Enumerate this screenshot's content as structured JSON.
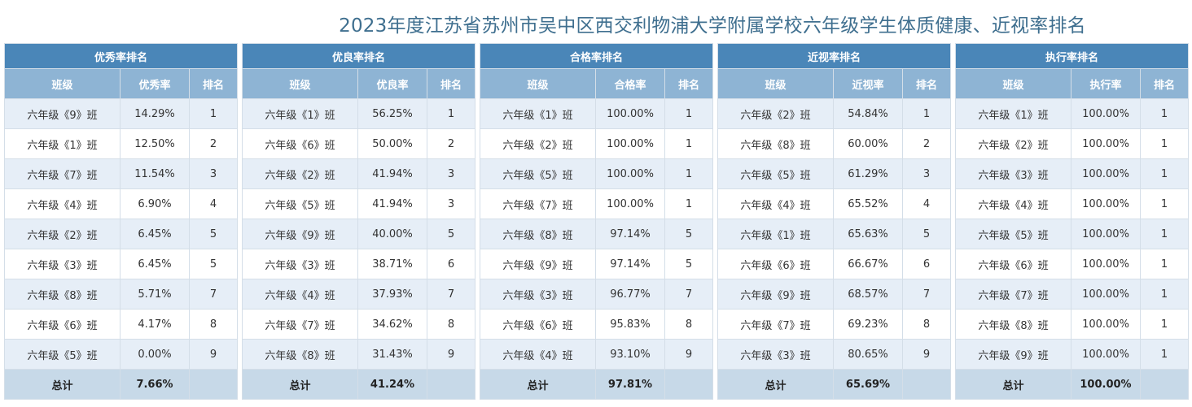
{
  "title": "2023年度江苏省苏州市吴中区西交利物浦大学附属学校六年级学生体质健康、近视率排名",
  "tables": [
    {
      "name": "优秀率排名",
      "columns": [
        "班级",
        "优秀率",
        "排名"
      ],
      "rows": [
        [
          "六年级《9》班",
          "14.29%",
          "1"
        ],
        [
          "六年级《1》班",
          "12.50%",
          "2"
        ],
        [
          "六年级《7》班",
          "11.54%",
          "3"
        ],
        [
          "六年级《4》班",
          "6.90%",
          "4"
        ],
        [
          "六年级《2》班",
          "6.45%",
          "5"
        ],
        [
          "六年级《3》班",
          "6.45%",
          "5"
        ],
        [
          "六年级《8》班",
          "5.71%",
          "7"
        ],
        [
          "六年级《6》班",
          "4.17%",
          "8"
        ],
        [
          "六年级《5》班",
          "0.00%",
          "9"
        ]
      ],
      "total_label": "总计",
      "total_value": "7.66%"
    },
    {
      "name": "优良率排名",
      "columns": [
        "班级",
        "优良率",
        "排名"
      ],
      "rows": [
        [
          "六年级《1》班",
          "56.25%",
          "1"
        ],
        [
          "六年级《6》班",
          "50.00%",
          "2"
        ],
        [
          "六年级《2》班",
          "41.94%",
          "3"
        ],
        [
          "六年级《5》班",
          "41.94%",
          "3"
        ],
        [
          "六年级《9》班",
          "40.00%",
          "5"
        ],
        [
          "六年级《3》班",
          "38.71%",
          "6"
        ],
        [
          "六年级《4》班",
          "37.93%",
          "7"
        ],
        [
          "六年级《7》班",
          "34.62%",
          "8"
        ],
        [
          "六年级《8》班",
          "31.43%",
          "9"
        ]
      ],
      "total_label": "总计",
      "total_value": "41.24%"
    },
    {
      "name": "合格率排名",
      "columns": [
        "班级",
        "合格率",
        "排名"
      ],
      "rows": [
        [
          "六年级《1》班",
          "100.00%",
          "1"
        ],
        [
          "六年级《2》班",
          "100.00%",
          "1"
        ],
        [
          "六年级《5》班",
          "100.00%",
          "1"
        ],
        [
          "六年级《7》班",
          "100.00%",
          "1"
        ],
        [
          "六年级《8》班",
          "97.14%",
          "5"
        ],
        [
          "六年级《9》班",
          "97.14%",
          "5"
        ],
        [
          "六年级《3》班",
          "96.77%",
          "7"
        ],
        [
          "六年级《6》班",
          "95.83%",
          "8"
        ],
        [
          "六年级《4》班",
          "93.10%",
          "9"
        ]
      ],
      "total_label": "总计",
      "total_value": "97.81%"
    },
    {
      "name": "近视率排名",
      "columns": [
        "班级",
        "近视率",
        "排名"
      ],
      "rows": [
        [
          "六年级《2》班",
          "54.84%",
          "1"
        ],
        [
          "六年级《8》班",
          "60.00%",
          "2"
        ],
        [
          "六年级《5》班",
          "61.29%",
          "3"
        ],
        [
          "六年级《4》班",
          "65.52%",
          "4"
        ],
        [
          "六年级《1》班",
          "65.63%",
          "5"
        ],
        [
          "六年级《6》班",
          "66.67%",
          "6"
        ],
        [
          "六年级《9》班",
          "68.57%",
          "7"
        ],
        [
          "六年级《7》班",
          "69.23%",
          "8"
        ],
        [
          "六年级《3》班",
          "80.65%",
          "9"
        ]
      ],
      "total_label": "总计",
      "total_value": "65.69%"
    },
    {
      "name": "执行率排名",
      "columns": [
        "班级",
        "执行率",
        "排名"
      ],
      "rows": [
        [
          "六年级《1》班",
          "100.00%",
          "1"
        ],
        [
          "六年级《2》班",
          "100.00%",
          "1"
        ],
        [
          "六年级《3》班",
          "100.00%",
          "1"
        ],
        [
          "六年级《4》班",
          "100.00%",
          "1"
        ],
        [
          "六年级《5》班",
          "100.00%",
          "1"
        ],
        [
          "六年级《6》班",
          "100.00%",
          "1"
        ],
        [
          "六年级《7》班",
          "100.00%",
          "1"
        ],
        [
          "六年级《8》班",
          "100.00%",
          "1"
        ],
        [
          "六年级《9》班",
          "100.00%",
          "1"
        ]
      ],
      "total_label": "总计",
      "total_value": "100.00%"
    }
  ]
}
